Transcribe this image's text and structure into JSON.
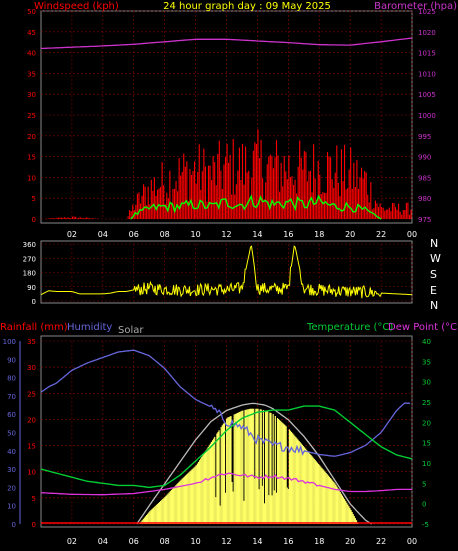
{
  "header": {
    "title": "24 hour graph day : 09 May 2025",
    "left_label": "Windspeed (kph)",
    "right_label": "Barometer (hpa)"
  },
  "direction_panel": {
    "compass_labels": [
      "N",
      "W",
      "S",
      "E",
      "N"
    ]
  },
  "bottom_panel": {
    "rain_label": "Rainfall (mm)",
    "humidity_label": "Humidity",
    "solar_label": "Solar",
    "temp_label": "Temperature (°C)",
    "dew_label": "Dew Point (°C)"
  },
  "colors": {
    "wind": "#ff0000",
    "gust": "#00ff00",
    "barometer": "#cc33cc",
    "direction": "#ffff00",
    "humidity": "#6666dd",
    "solar": "#ffff66",
    "solar_max": "#bbbbbb",
    "temperature": "#00cc33",
    "dewpoint": "#dd33dd",
    "rain": "#ff0000",
    "grid": "#800000"
  },
  "chart_data": [
    {
      "type": "bar",
      "title": "24 hour graph day : 09 May 2025",
      "x_ticks": [
        "02",
        "04",
        "06",
        "08",
        "10",
        "12",
        "14",
        "16",
        "18",
        "20",
        "22",
        "00"
      ],
      "xlim_hours": [
        0,
        24
      ],
      "y_left_label": "Windspeed (kph)",
      "y_left_ticks": [
        0,
        5,
        10,
        15,
        20,
        25,
        30,
        35,
        40,
        45,
        50
      ],
      "ylim_left": [
        0,
        50
      ],
      "y_right_label": "Barometer (hpa)",
      "y_right_ticks": [
        975,
        980,
        985,
        990,
        995,
        1000,
        1005,
        1010,
        1015,
        1020,
        1025
      ],
      "ylim_right": [
        975,
        1025
      ],
      "series": [
        {
          "name": "Windspeed",
          "hours": [
            0,
            2,
            4,
            5,
            5.5,
            6,
            7,
            8,
            9,
            10,
            11,
            12,
            13,
            14,
            15,
            16,
            17,
            18,
            19,
            20,
            21,
            21.5,
            22,
            23
          ],
          "values": [
            0,
            0.5,
            0,
            0,
            0,
            4,
            9,
            11,
            13,
            14,
            13,
            15,
            15,
            16,
            15,
            15,
            14,
            15,
            14,
            13,
            11,
            6,
            3,
            3
          ]
        },
        {
          "name": "Gust",
          "hours": [
            0,
            5.8,
            6,
            7,
            8,
            9,
            10,
            11,
            12,
            13,
            14,
            15,
            16,
            17,
            18,
            19,
            20,
            21,
            22,
            23
          ],
          "values": [
            0,
            0,
            1,
            2.5,
            3,
            3,
            3.5,
            3,
            4,
            3.5,
            4.5,
            3.5,
            4,
            3.5,
            4,
            3,
            3,
            2,
            0,
            0
          ]
        },
        {
          "name": "Barometer",
          "hours": [
            0,
            2,
            4,
            6,
            8,
            10,
            12,
            14,
            16,
            18,
            20,
            22,
            24
          ],
          "values": [
            1016,
            1016.3,
            1016.6,
            1017,
            1017.6,
            1018.2,
            1018.2,
            1017.8,
            1017.4,
            1016.9,
            1016.8,
            1017.6,
            1018.5
          ]
        }
      ]
    },
    {
      "type": "scatter",
      "x_ticks": [
        "02",
        "04",
        "06",
        "08",
        "10",
        "12",
        "14",
        "16",
        "18",
        "20",
        "22",
        "00"
      ],
      "xlim_hours": [
        0,
        24
      ],
      "y_ticks": [
        0,
        90,
        180,
        270,
        360
      ],
      "ylim": [
        0,
        360
      ],
      "series": [
        {
          "name": "Wind Direction",
          "hours": [
            0,
            0.5,
            1,
            1.5,
            2,
            2.5,
            3,
            3.5,
            4,
            4.5,
            5,
            5.5,
            6,
            7,
            8,
            9,
            10,
            11,
            12,
            13,
            13.6,
            14,
            15,
            16,
            16.4,
            17,
            18,
            19,
            20,
            21,
            22,
            23,
            24
          ],
          "values": [
            40,
            65,
            60,
            60,
            60,
            45,
            45,
            45,
            45,
            50,
            60,
            60,
            70,
            80,
            75,
            70,
            70,
            75,
            70,
            80,
            360,
            80,
            75,
            80,
            360,
            80,
            70,
            65,
            60,
            55,
            50,
            45,
            40
          ]
        }
      ]
    },
    {
      "type": "line",
      "x_ticks": [
        "02",
        "04",
        "06",
        "08",
        "10",
        "12",
        "14",
        "16",
        "18",
        "20",
        "22",
        "00"
      ],
      "xlim_hours": [
        0,
        24
      ],
      "y_humidity_ticks": [
        0,
        10,
        20,
        30,
        40,
        50,
        60,
        70,
        80,
        90,
        100
      ],
      "ylim_humidity": [
        0,
        100
      ],
      "y_rain_ticks": [
        0,
        5,
        10,
        15,
        20,
        25,
        30,
        35
      ],
      "ylim_rain": [
        0,
        35
      ],
      "y_temp_ticks": [
        -5,
        0,
        5,
        10,
        15,
        20,
        25,
        30,
        35,
        40
      ],
      "ylim_temp": [
        -5,
        40
      ],
      "series": [
        {
          "name": "Humidity",
          "hours": [
            0,
            0.5,
            1,
            2,
            3,
            4,
            5,
            6,
            7,
            8,
            9,
            10,
            11,
            12,
            13,
            14,
            15,
            16,
            17,
            18,
            19,
            20,
            21,
            22,
            23,
            23.5,
            24
          ],
          "values": [
            72,
            75,
            77,
            84,
            88,
            91,
            94,
            95,
            92,
            85,
            75,
            68,
            64,
            56,
            53,
            46,
            43,
            42,
            40,
            38,
            37,
            39,
            43,
            50,
            62,
            66,
            66
          ]
        },
        {
          "name": "Solar",
          "hours": [
            6.3,
            7,
            8,
            9,
            10,
            11,
            12,
            12.5,
            13,
            13.5,
            14,
            14.5,
            15,
            16,
            17,
            18,
            19,
            20,
            20.5
          ],
          "values": [
            0,
            7,
            15,
            24,
            32,
            45,
            58,
            60,
            62,
            63,
            63,
            62,
            60,
            52,
            42,
            32,
            22,
            8,
            0
          ]
        },
        {
          "name": "Solar Max",
          "hours": [
            6.2,
            7,
            8,
            9,
            10,
            11,
            12,
            13,
            13.7,
            14.5,
            15,
            16,
            17,
            18,
            19,
            20,
            21,
            21.4
          ],
          "values": [
            0,
            10,
            22,
            34,
            46,
            56,
            62,
            65,
            66,
            65,
            63,
            57,
            48,
            37,
            24,
            11,
            2,
            0
          ]
        },
        {
          "name": "Temperature",
          "hours": [
            0,
            1,
            2,
            3,
            4,
            5,
            6,
            7,
            8,
            9,
            10,
            11,
            12,
            13,
            14,
            15,
            16,
            17,
            18,
            19,
            20,
            21,
            22,
            23,
            24
          ],
          "values": [
            8.5,
            7.5,
            6.5,
            5.5,
            5,
            4.5,
            4.5,
            4,
            4.5,
            7,
            10.5,
            14,
            18,
            21,
            22.5,
            23,
            23,
            24,
            24,
            23,
            20,
            17,
            14,
            12,
            11
          ]
        },
        {
          "name": "Dew Point",
          "hours": [
            0,
            2,
            4,
            6,
            8,
            10,
            11,
            12,
            13,
            14,
            15,
            16,
            17,
            18,
            19,
            20,
            21,
            22,
            23,
            24
          ],
          "values": [
            2.7,
            2.3,
            2.2,
            2.5,
            3.5,
            5,
            6.5,
            7.5,
            7,
            6.5,
            6.8,
            6.2,
            5.5,
            4.5,
            3.5,
            3,
            3,
            3.2,
            3.5,
            3.5
          ]
        },
        {
          "name": "Rainfall",
          "hours": [
            0,
            24
          ],
          "values": [
            0,
            0
          ]
        }
      ]
    }
  ]
}
